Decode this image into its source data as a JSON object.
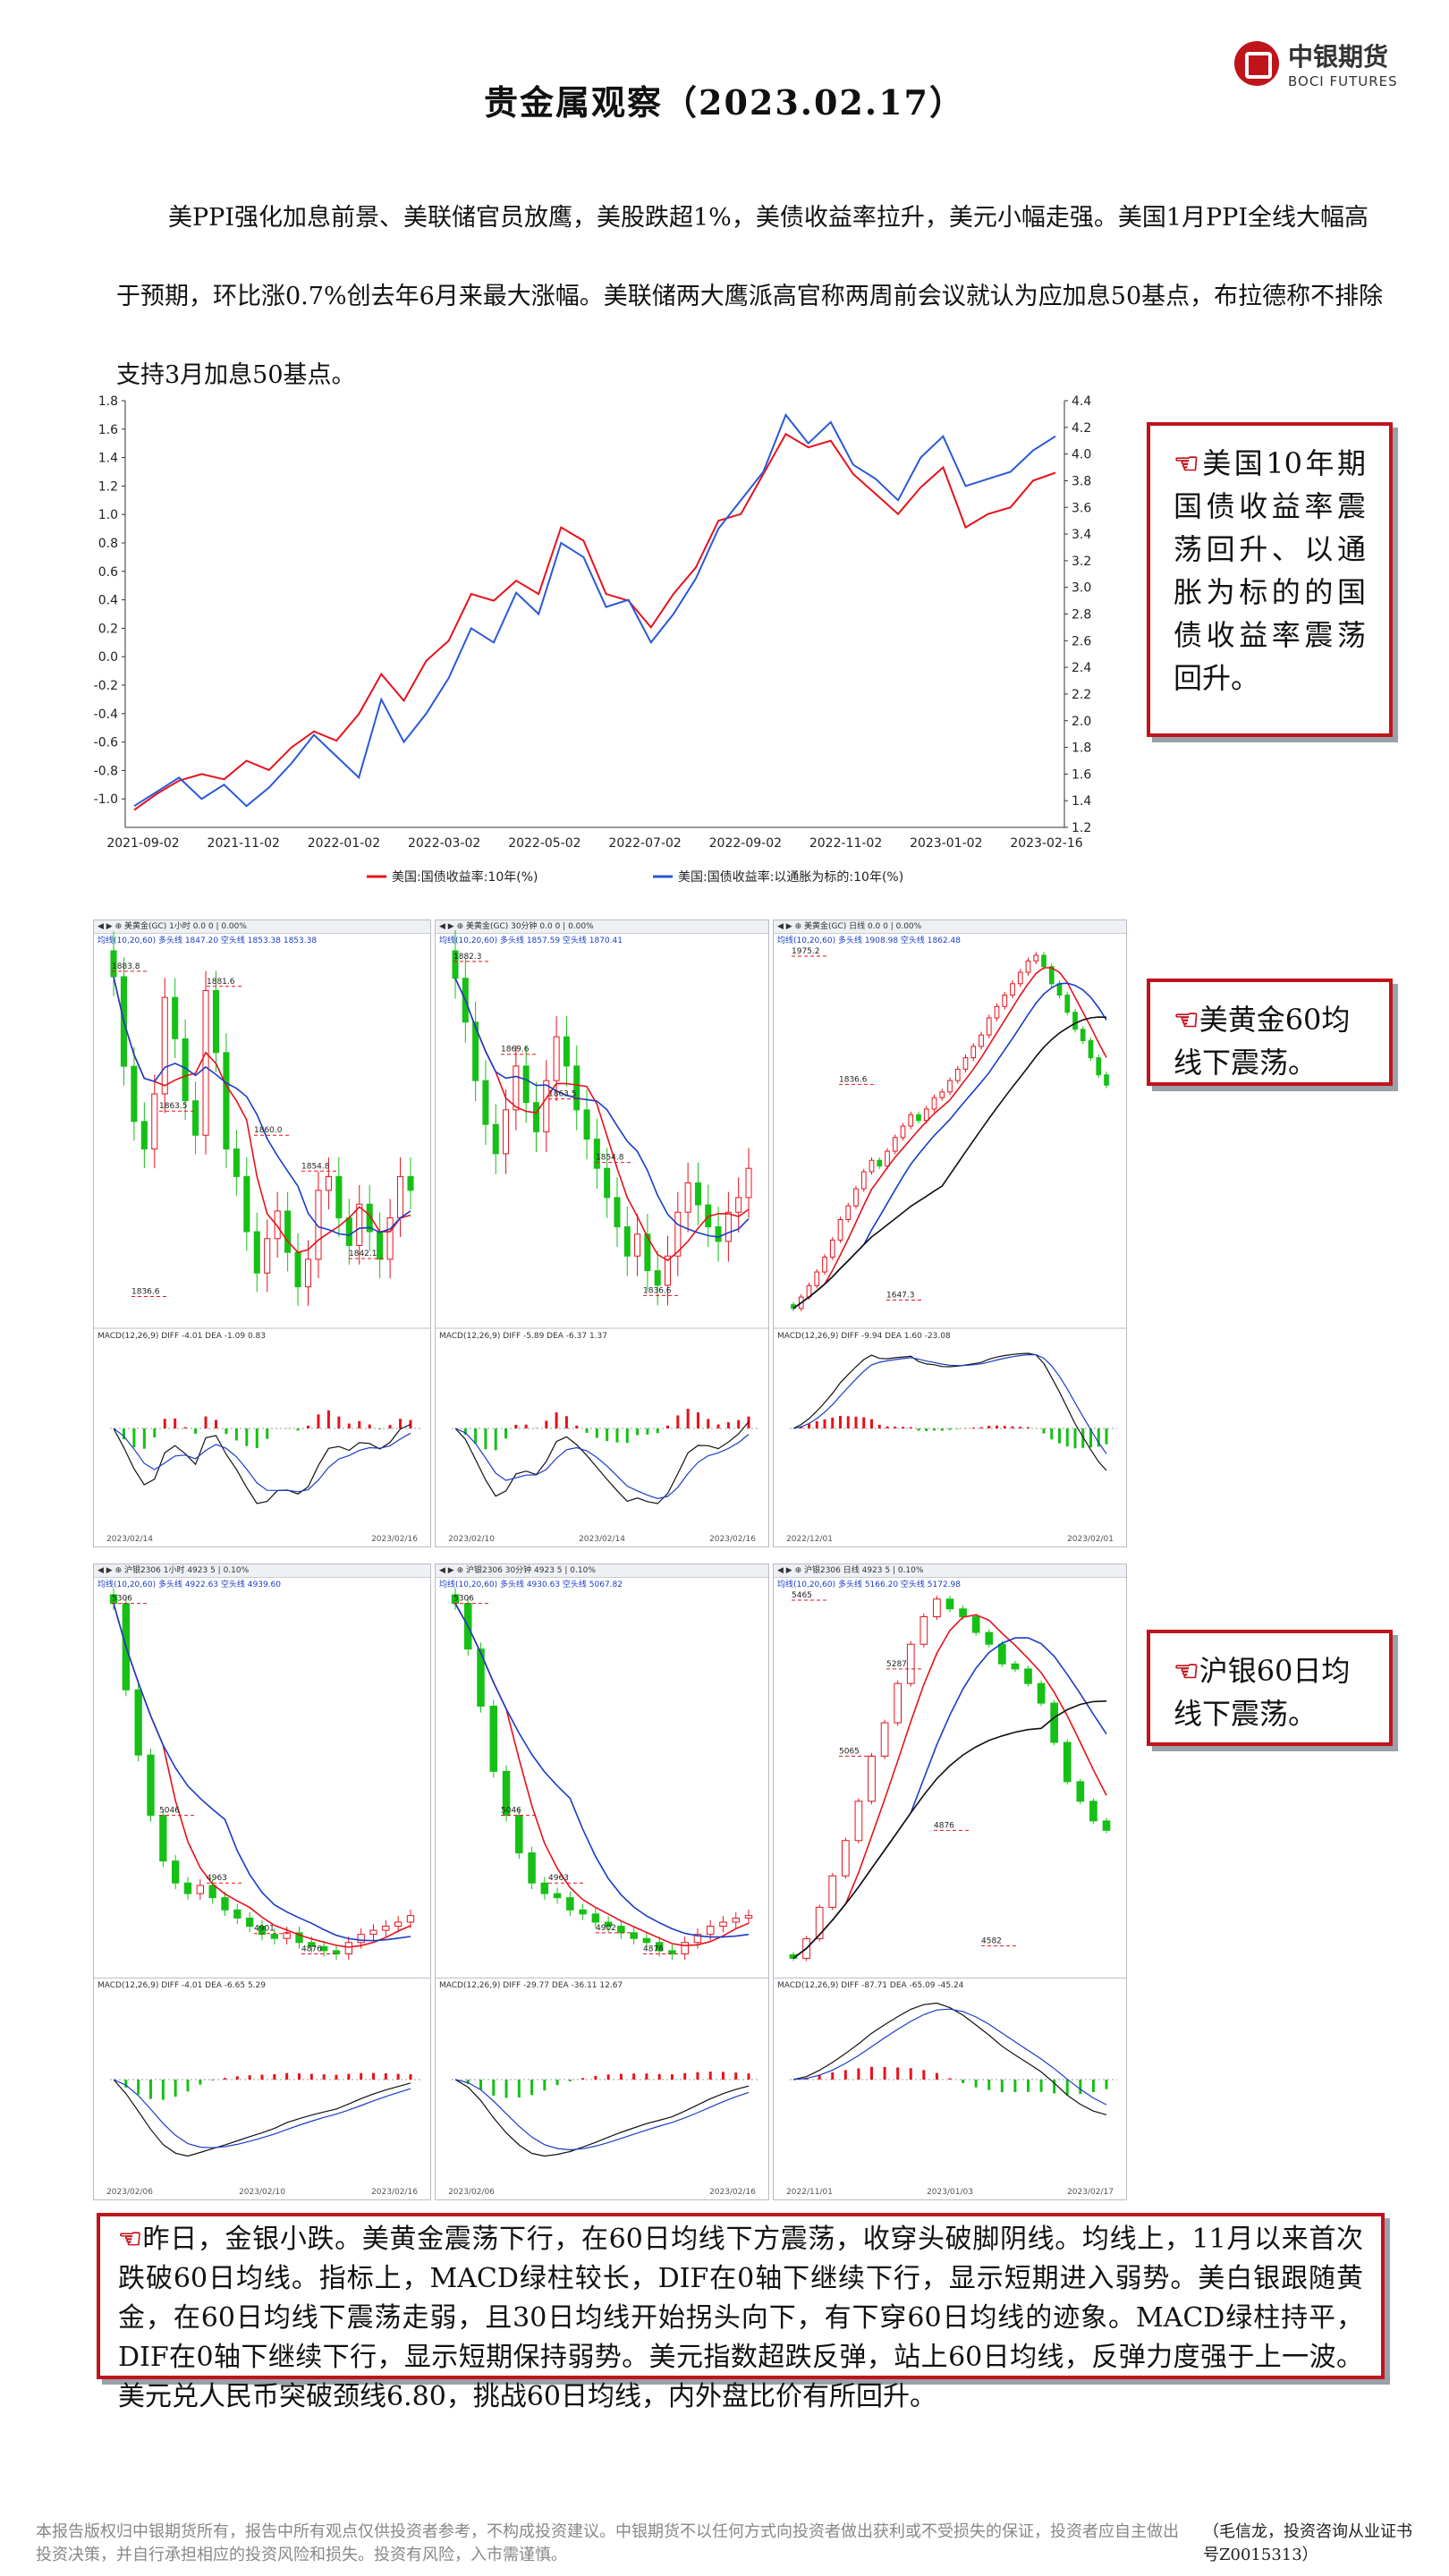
{
  "header": {
    "title": "贵金属观察（2023.02.17）",
    "logo_cn": "中银期货",
    "logo_en": "BOCI FUTURES"
  },
  "intro": "美PPI强化加息前景、美联储官员放鹰，美股跌超1%，美债收益率拉升，美元小幅走强。美国1月PPI全线大幅高于预期，环比涨0.7%创去年6月来最大涨幅。美联储两大鹰派高官称两周前会议就认为应加息50基点，布拉德称不排除支持3月加息50基点。",
  "callouts": {
    "hand": "☜",
    "c1": "美国10年期国债收益率震荡回升、以通胀为标的的国债收益率震荡回升。",
    "c2": "美黄金60均线下震荡。",
    "c3": "沪银60日均线下震荡。"
  },
  "chart_data": [
    {
      "type": "line",
      "x_ticks": [
        "2021-09-02",
        "2021-11-02",
        "2022-01-02",
        "2022-03-02",
        "2022-05-02",
        "2022-07-02",
        "2022-09-02",
        "2022-11-02",
        "2023-01-02",
        "2023-02-16"
      ],
      "left_axis_ticks": [
        "1.8",
        "1.6",
        "1.4",
        "1.2",
        "1.0",
        "0.8",
        "0.6",
        "0.4",
        "0.2",
        "0.0",
        "-0.2",
        "-0.4",
        "-0.6",
        "-0.8",
        "-1.0"
      ],
      "right_axis_ticks": [
        "4.4",
        "4.2",
        "4.0",
        "3.8",
        "3.6",
        "3.4",
        "3.2",
        "3.0",
        "2.8",
        "2.6",
        "2.4",
        "2.2",
        "2.0",
        "1.8",
        "1.6",
        "1.4",
        "1.2"
      ],
      "ylim_left": [
        -1.2,
        1.8
      ],
      "ylim_right": [
        1.2,
        4.4
      ],
      "grid": false,
      "legend": "bottom",
      "series": [
        {
          "name": "美国:国债收益率:10年(%)",
          "axis": "right",
          "color": "#e8111b",
          "values": [
            1.33,
            1.45,
            1.55,
            1.6,
            1.56,
            1.7,
            1.63,
            1.8,
            1.92,
            1.85,
            2.05,
            2.35,
            2.15,
            2.45,
            2.6,
            2.95,
            2.9,
            3.05,
            2.95,
            3.45,
            3.35,
            2.95,
            2.9,
            2.7,
            2.95,
            3.15,
            3.5,
            3.55,
            3.85,
            4.15,
            4.05,
            4.1,
            3.85,
            3.7,
            3.55,
            3.75,
            3.9,
            3.45,
            3.55,
            3.6,
            3.8,
            3.86
          ]
        },
        {
          "name": "美国:国债收益率:以通胀为标的:10年(%)",
          "axis": "left",
          "color": "#2a59d6",
          "values": [
            -1.05,
            -0.95,
            -0.85,
            -1.0,
            -0.9,
            -1.05,
            -0.92,
            -0.75,
            -0.55,
            -0.7,
            -0.85,
            -0.3,
            -0.6,
            -0.4,
            -0.15,
            0.2,
            0.1,
            0.45,
            0.3,
            0.8,
            0.7,
            0.35,
            0.4,
            0.1,
            0.3,
            0.55,
            0.9,
            1.1,
            1.3,
            1.7,
            1.5,
            1.65,
            1.35,
            1.25,
            1.1,
            1.4,
            1.55,
            1.2,
            1.25,
            1.3,
            1.45,
            1.55
          ]
        }
      ]
    },
    {
      "type": "candlestick",
      "panel": "美黄金 1小时",
      "closes": [
        1883,
        1870,
        1862,
        1858,
        1866,
        1880,
        1874,
        1865,
        1860,
        1881,
        1872,
        1858,
        1854,
        1846,
        1840,
        1845,
        1849,
        1843,
        1838,
        1842,
        1852,
        1854,
        1848,
        1844,
        1850,
        1846,
        1842,
        1848,
        1854,
        1852
      ],
      "price_labels": [
        "1883.8",
        "1863.5",
        "1881.6",
        "1860.0",
        "1854.8",
        "1842.1",
        "1836.6"
      ],
      "x_labels": [
        "2023/02/14",
        "2023/02/16"
      ]
    },
    {
      "type": "candlestick",
      "panel": "美黄金 30分钟",
      "closes": [
        1880,
        1874,
        1866,
        1860,
        1856,
        1862,
        1868,
        1863,
        1859,
        1866,
        1872,
        1868,
        1862,
        1858,
        1854,
        1850,
        1846,
        1842,
        1845,
        1840,
        1838,
        1842,
        1848,
        1852,
        1849,
        1846,
        1844,
        1848,
        1850,
        1854
      ],
      "price_labels": [
        "1882.3",
        "1869.6",
        "1863.5",
        "1854.8",
        "1836.6"
      ],
      "x_labels": [
        "2023/02/10",
        "2023/02/14",
        "2023/02/16"
      ]
    },
    {
      "type": "candlestick",
      "panel": "美黄金 日线",
      "closes": [
        1640,
        1650,
        1660,
        1672,
        1685,
        1700,
        1718,
        1730,
        1745,
        1760,
        1770,
        1765,
        1778,
        1790,
        1800,
        1810,
        1805,
        1815,
        1825,
        1830,
        1840,
        1850,
        1860,
        1870,
        1880,
        1895,
        1905,
        1915,
        1925,
        1935,
        1945,
        1950,
        1940,
        1925,
        1915,
        1900,
        1885,
        1875,
        1860,
        1845,
        1836
      ],
      "price_labels": [
        "1975.2",
        "1836.6",
        "1647.3"
      ],
      "x_labels": [
        "2022/12/01",
        "2023/02/01"
      ]
    },
    {
      "type": "candlestick",
      "panel": "沪银 1小时",
      "closes": [
        5306,
        5200,
        5120,
        5046,
        4990,
        4963,
        4950,
        4960,
        4945,
        4930,
        4920,
        4910,
        4900,
        4895,
        4902,
        4890,
        4885,
        4880,
        4876,
        4890,
        4900,
        4905,
        4910,
        4915,
        4923
      ],
      "price_labels": [
        "5306",
        "5046",
        "4963",
        "4901",
        "4876"
      ],
      "x_labels": [
        "2023/02/06",
        "2023/02/10",
        "2023/02/16"
      ]
    },
    {
      "type": "candlestick",
      "panel": "沪银 30分钟",
      "closes": [
        5306,
        5250,
        5180,
        5100,
        5046,
        5000,
        4963,
        4950,
        4945,
        4930,
        4925,
        4915,
        4910,
        4902,
        4895,
        4890,
        4880,
        4876,
        4890,
        4900,
        4910,
        4915,
        4920,
        4923
      ],
      "price_labels": [
        "5306",
        "5046",
        "4963",
        "4902",
        "4876"
      ],
      "x_labels": [
        "2023/02/06",
        "2023/02/16"
      ]
    },
    {
      "type": "candlestick",
      "panel": "沪银 日线",
      "closes": [
        4550,
        4600,
        4680,
        4760,
        4850,
        4950,
        5065,
        5150,
        5250,
        5350,
        5420,
        5465,
        5440,
        5420,
        5380,
        5350,
        5300,
        5287,
        5250,
        5200,
        5100,
        5000,
        4950,
        4900,
        4876
      ],
      "price_labels": [
        "5465",
        "5065",
        "5287",
        "4876",
        "4582"
      ],
      "x_labels": [
        "2022/11/01",
        "2023/01/03",
        "2023/02/17"
      ]
    }
  ],
  "panels": {
    "gold_h1": {
      "toolbar": "◀ ▶ ⊕  美黄金(GC)  1小时  0.0  0 | 0.00%",
      "ma": "均线(10,20,60)  多头线 1847.20  空头线 1853.38  1853.38",
      "macd": "MACD(12,26,9)  DIFF -4.01  DEA -1.09  0.83"
    },
    "gold_m30": {
      "toolbar": "◀ ▶ ⊕  美黄金(GC)  30分钟  0.0  0 | 0.00%",
      "ma": "均线(10,20,60)  多头线 1857.59  空头线 1870.41",
      "macd": "MACD(12,26,9)  DIFF -5.89  DEA -6.37  1.37"
    },
    "gold_d1": {
      "toolbar": "◀ ▶ ⊕  美黄金(GC)  日线  0.0  0 | 0.00%",
      "ma": "均线(10,20,60)  多头线 1908.98  空头线 1862.48",
      "macd": "MACD(12,26,9)  DIFF -9.94  DEA 1.60  -23.08"
    },
    "ag_h1": {
      "toolbar": "◀ ▶ ⊕  沪银2306  1小时  4923  5 | 0.10%",
      "ma": "均线(10,20,60)  多头线 4922.63  空头线 4939.60",
      "macd": "MACD(12,26,9)  DIFF -4.01  DEA -6.65  5.29"
    },
    "ag_m30": {
      "toolbar": "◀ ▶ ⊕  沪银2306  30分钟  4923  5 | 0.10%",
      "ma": "均线(10,20,60)  多头线 4930.63  空头线 5067.82",
      "macd": "MACD(12,26,9)  DIFF -29.77  DEA -36.11  12.67"
    },
    "ag_d1": {
      "toolbar": "◀ ▶ ⊕  沪银2306  日线  4923  5 | 0.10%",
      "ma": "均线(10,20,60)  多头线 5166.20  空头线 5172.98",
      "macd": "MACD(12,26,9)  DIFF -87.71  DEA -65.09  -45.24"
    }
  },
  "summary": "昨日，金银小跌。美黄金震荡下行，在60日均线下方震荡，收穿头破脚阴线。均线上，11月以来首次跌破60日均线。指标上，MACD绿柱较长，DIF在0轴下继续下行，显示短期进入弱势。美白银跟随黄金，在60日均线下震荡走弱，且30日均线开始拐头向下，有下穿60日均线的迹象。MACD绿柱持平，DIF在0轴下继续下行，显示短期保持弱势。美元指数超跌反弹，站上60日均线，反弹力度强于上一波。美元兑人民币突破颈线6.80，挑战60日均线，内外盘比价有所回升。",
  "footer": "本报告版权归中银期货所有，报告中所有观点仅供投资者参考，不构成投资建议。中银期货不以任何方式向投资者做出获利或不受损失的保证，投资者应自主做出投资决策，并自行承担相应的投资风险和损失。投资有风险，入市需谨慎。",
  "author": "（毛信龙，投资咨询从业证书号Z0015313）"
}
